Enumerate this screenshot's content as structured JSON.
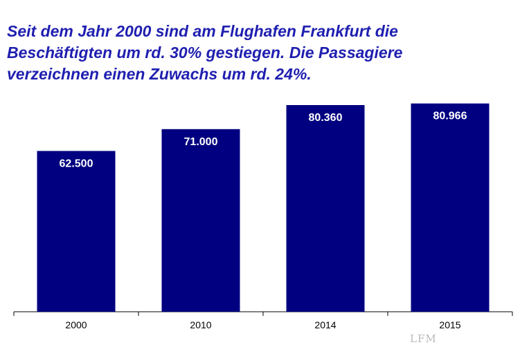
{
  "chart_data": {
    "type": "bar",
    "title": "Seit dem Jahr 2000 sind am Flughafen Frankfurt die\nBeschäftigten um rd. 30% gestiegen. Die Passagiere\nverzeichnen einen Zuwachs um rd. 24%.",
    "categories": [
      "2000",
      "2010",
      "2014",
      "2015"
    ],
    "values": [
      62500,
      71000,
      80360,
      80966
    ],
    "value_labels": [
      "62.500",
      "71.000",
      "80.360",
      "80.966"
    ],
    "xlabel": "",
    "ylabel": "",
    "ylim": [
      0,
      86000
    ],
    "grid": false,
    "legend": "none",
    "bar_color": "#000080",
    "label_color": "#ffffff",
    "title_color": "#1f1fb0"
  },
  "watermark": "LFM"
}
